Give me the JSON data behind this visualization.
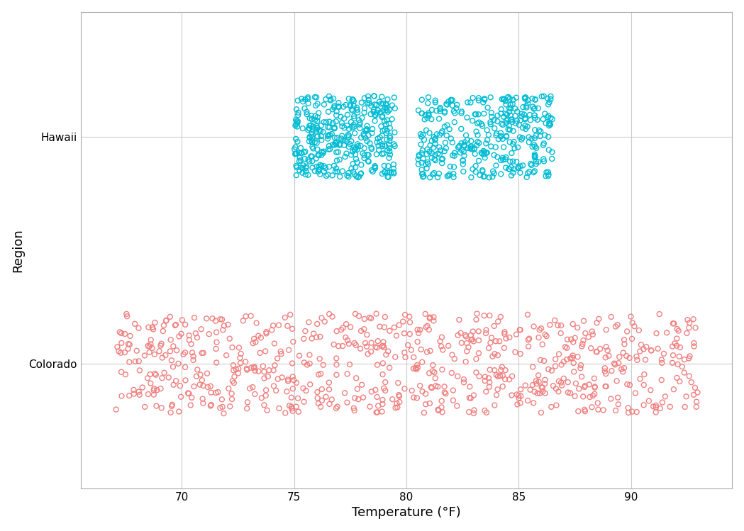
{
  "title": "",
  "xlabel": "Temperature (°F)",
  "ylabel": "Region",
  "categories": [
    "Colorado",
    "Hawaii"
  ],
  "hawaii_color": "#00BCD4",
  "colorado_color": "#F08080",
  "hawaii_temp_mean": 80.0,
  "hawaii_temp_std": 2.5,
  "hawaii_temp_min": 75.0,
  "hawaii_temp_max": 86.0,
  "colorado_temp_mean": 79.0,
  "colorado_temp_std": 5.5,
  "colorado_temp_min": 67.0,
  "colorado_temp_max": 93.0,
  "hawaii_n": 744,
  "colorado_n": 744,
  "xlim": [
    65.5,
    94.5
  ],
  "xticks": [
    70,
    75,
    80,
    85,
    90
  ],
  "marker_size": 5,
  "linewidth": 1.0,
  "jitter_hawaii": 0.18,
  "jitter_colorado": 0.22,
  "background_color": "#ffffff",
  "grid_color": "#cccccc",
  "axis_label_fontsize": 13,
  "tick_fontsize": 11
}
